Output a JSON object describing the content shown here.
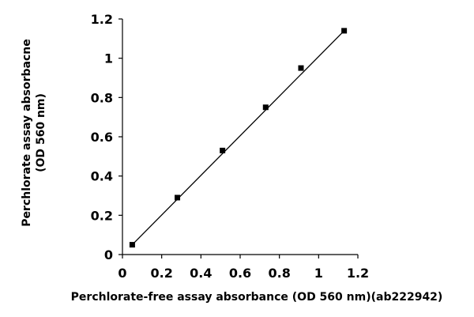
{
  "chart_data": {
    "type": "scatter",
    "xlabel": "Perchlorate-free assay absorbance (OD 560 nm)(ab222942)",
    "ylabel_line1": "Perchlorate assay absorbacne",
    "ylabel_line2": "(OD 560 nm)",
    "xlim": [
      0,
      1.2
    ],
    "ylim": [
      0,
      1.2
    ],
    "x_ticks": [
      "0",
      "0.2",
      "0.4",
      "0.6",
      "0.8",
      "1",
      "1.2"
    ],
    "y_ticks": [
      "0",
      "0.2",
      "0.4",
      "0.6",
      "0.8",
      "1",
      "1.2"
    ],
    "series": [
      {
        "x": [
          0.05,
          0.28,
          0.51,
          0.73,
          0.91,
          1.13
        ],
        "y": [
          0.05,
          0.29,
          0.53,
          0.75,
          0.95,
          1.14
        ]
      }
    ],
    "trendline": {
      "x": [
        0.05,
        1.13
      ],
      "y": [
        0.05,
        1.14
      ]
    },
    "grid": false,
    "colors": {
      "marker": "#000000",
      "line": "#000000"
    }
  }
}
